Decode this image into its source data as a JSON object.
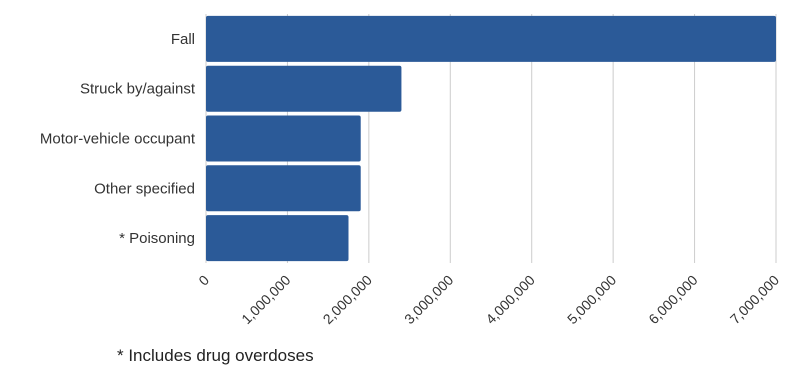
{
  "chart_data": {
    "type": "bar",
    "orientation": "horizontal",
    "categories": [
      "Fall",
      "Struck by/against",
      "Motor-vehicle occupant",
      "Other specified",
      "* Poisoning"
    ],
    "values": [
      7000000,
      2400000,
      1900000,
      1900000,
      1750000
    ],
    "xlim": [
      0,
      7000000
    ],
    "x_ticks": [
      0,
      1000000,
      2000000,
      3000000,
      4000000,
      5000000,
      6000000,
      7000000
    ],
    "x_tick_labels": [
      "0",
      "1,000,000",
      "2,000,000",
      "3,000,000",
      "4,000,000",
      "5,000,000",
      "6,000,000",
      "7,000,000"
    ],
    "grid": "vertical",
    "bar_color": "#2b5a98",
    "grid_color": "#cccccc"
  },
  "footnote": "*  Includes drug overdoses"
}
